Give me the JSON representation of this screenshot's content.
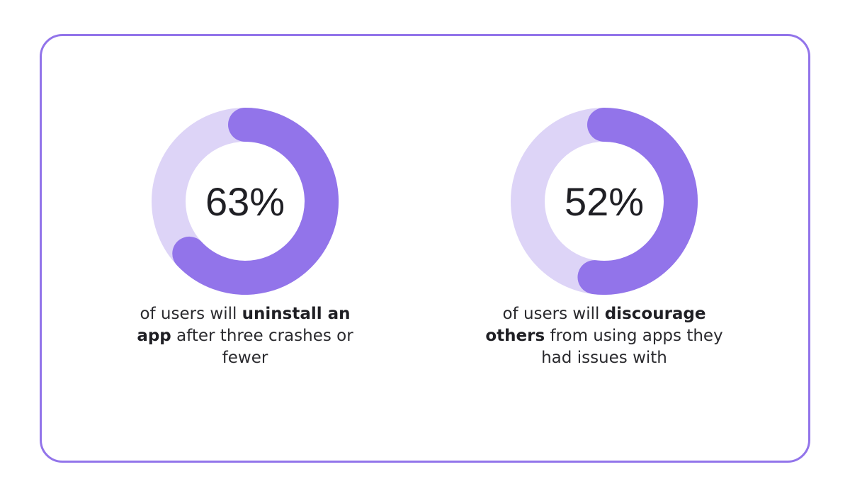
{
  "colors": {
    "border": "#9274ea",
    "ring_track": "#ddd4f7",
    "ring_fill": "#9274ea",
    "text": "#1f1f24"
  },
  "chart_data": [
    {
      "type": "pie",
      "value": 63,
      "max": 100,
      "label": "63%",
      "caption": {
        "before": "of users will ",
        "bold": "uninstall an app",
        "after": " after three crashes or fewer"
      }
    },
    {
      "type": "pie",
      "value": 52,
      "max": 100,
      "label": "52%",
      "caption": {
        "before": "of users will ",
        "bold": "discourage others",
        "after": " from using apps they had issues with"
      }
    }
  ]
}
